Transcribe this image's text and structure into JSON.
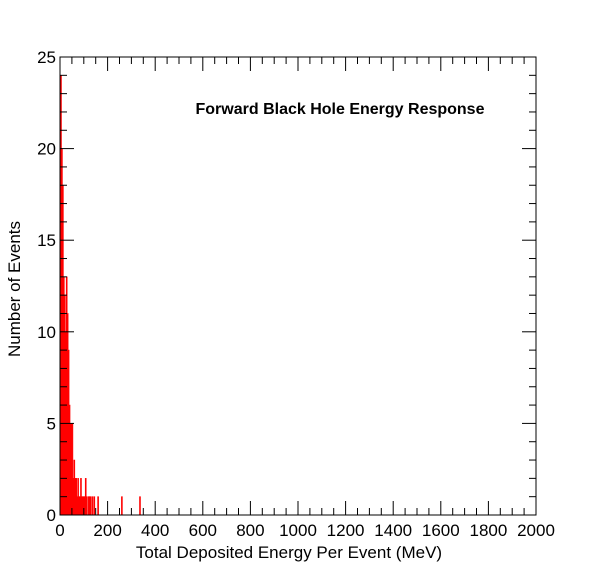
{
  "chart_data": {
    "type": "bar",
    "title": "Forward Black Hole Energy Response",
    "xlabel": "Total Deposited Energy Per Event (MeV)",
    "ylabel": "Number of Events",
    "xlim": [
      0,
      2000
    ],
    "ylim": [
      0,
      25
    ],
    "x_ticks": [
      0,
      200,
      400,
      600,
      800,
      1000,
      1200,
      1400,
      1600,
      1800,
      2000
    ],
    "y_ticks": [
      0,
      5,
      10,
      15,
      20,
      25
    ],
    "grid": false,
    "legend": "none",
    "bar_color": "#ff0000",
    "bin_width": 4,
    "bins": [
      {
        "x": 4,
        "y": 24
      },
      {
        "x": 8,
        "y": 20
      },
      {
        "x": 12,
        "y": 18
      },
      {
        "x": 16,
        "y": 13
      },
      {
        "x": 20,
        "y": 12
      },
      {
        "x": 24,
        "y": 10
      },
      {
        "x": 28,
        "y": 13
      },
      {
        "x": 32,
        "y": 11
      },
      {
        "x": 36,
        "y": 9
      },
      {
        "x": 40,
        "y": 6
      },
      {
        "x": 44,
        "y": 5
      },
      {
        "x": 48,
        "y": 5
      },
      {
        "x": 52,
        "y": 5
      },
      {
        "x": 56,
        "y": 2
      },
      {
        "x": 60,
        "y": 3
      },
      {
        "x": 64,
        "y": 2
      },
      {
        "x": 68,
        "y": 2
      },
      {
        "x": 72,
        "y": 1
      },
      {
        "x": 76,
        "y": 2
      },
      {
        "x": 80,
        "y": 1
      },
      {
        "x": 84,
        "y": 1
      },
      {
        "x": 88,
        "y": 2
      },
      {
        "x": 92,
        "y": 1
      },
      {
        "x": 96,
        "y": 1
      },
      {
        "x": 100,
        "y": 1
      },
      {
        "x": 104,
        "y": 1
      },
      {
        "x": 108,
        "y": 2
      },
      {
        "x": 112,
        "y": 1
      },
      {
        "x": 120,
        "y": 1
      },
      {
        "x": 124,
        "y": 1
      },
      {
        "x": 128,
        "y": 1
      },
      {
        "x": 136,
        "y": 1
      },
      {
        "x": 144,
        "y": 1
      },
      {
        "x": 160,
        "y": 1
      },
      {
        "x": 260,
        "y": 1
      },
      {
        "x": 336,
        "y": 1
      }
    ]
  }
}
